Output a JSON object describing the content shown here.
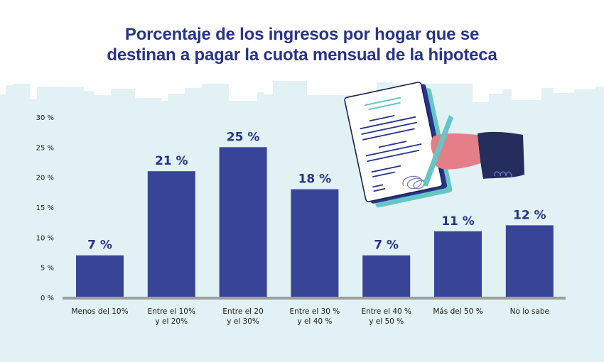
{
  "title": {
    "line1": "Porcentaje de los ingresos por hogar que se",
    "line2": "destinan a pagar la cuota mensual de la hipoteca"
  },
  "illustration": {
    "icon": "hand-signing-document-icon"
  },
  "colors": {
    "bar": "#384596",
    "title": "#27348b",
    "background_skyline": "#e2f1f4",
    "axis": "#9e9e9e",
    "teal": "#66c6c6",
    "pink": "#e47f87",
    "navy": "#252d5c"
  },
  "chart_data": {
    "type": "bar",
    "title": "Porcentaje de los ingresos por hogar que se destinan a pagar la cuota mensual de la hipoteca",
    "xlabel": "",
    "ylabel": "",
    "ylim": [
      0,
      30
    ],
    "yticks": [
      0,
      5,
      10,
      15,
      20,
      25,
      30
    ],
    "ytick_labels": [
      "0 %",
      "5 %",
      "10 %",
      "15 %",
      "20 %",
      "25 %",
      "30 %"
    ],
    "grid": false,
    "legend": "none",
    "categories": [
      [
        "Menos del 10%"
      ],
      [
        "Entre el 10%",
        "y el 20%"
      ],
      [
        "Entre el 20",
        "y el 30%"
      ],
      [
        "Entre el 30 %",
        "y el 40 %"
      ],
      [
        "Entre el 40 %",
        "y el 50 %"
      ],
      [
        "Más del 50 %"
      ],
      [
        "No lo sabe"
      ]
    ],
    "values": [
      7,
      21,
      25,
      18,
      7,
      11,
      12
    ],
    "data_labels": [
      "7 %",
      "21 %",
      "25 %",
      "18 %",
      "7 %",
      "11 %",
      "12 %"
    ]
  }
}
